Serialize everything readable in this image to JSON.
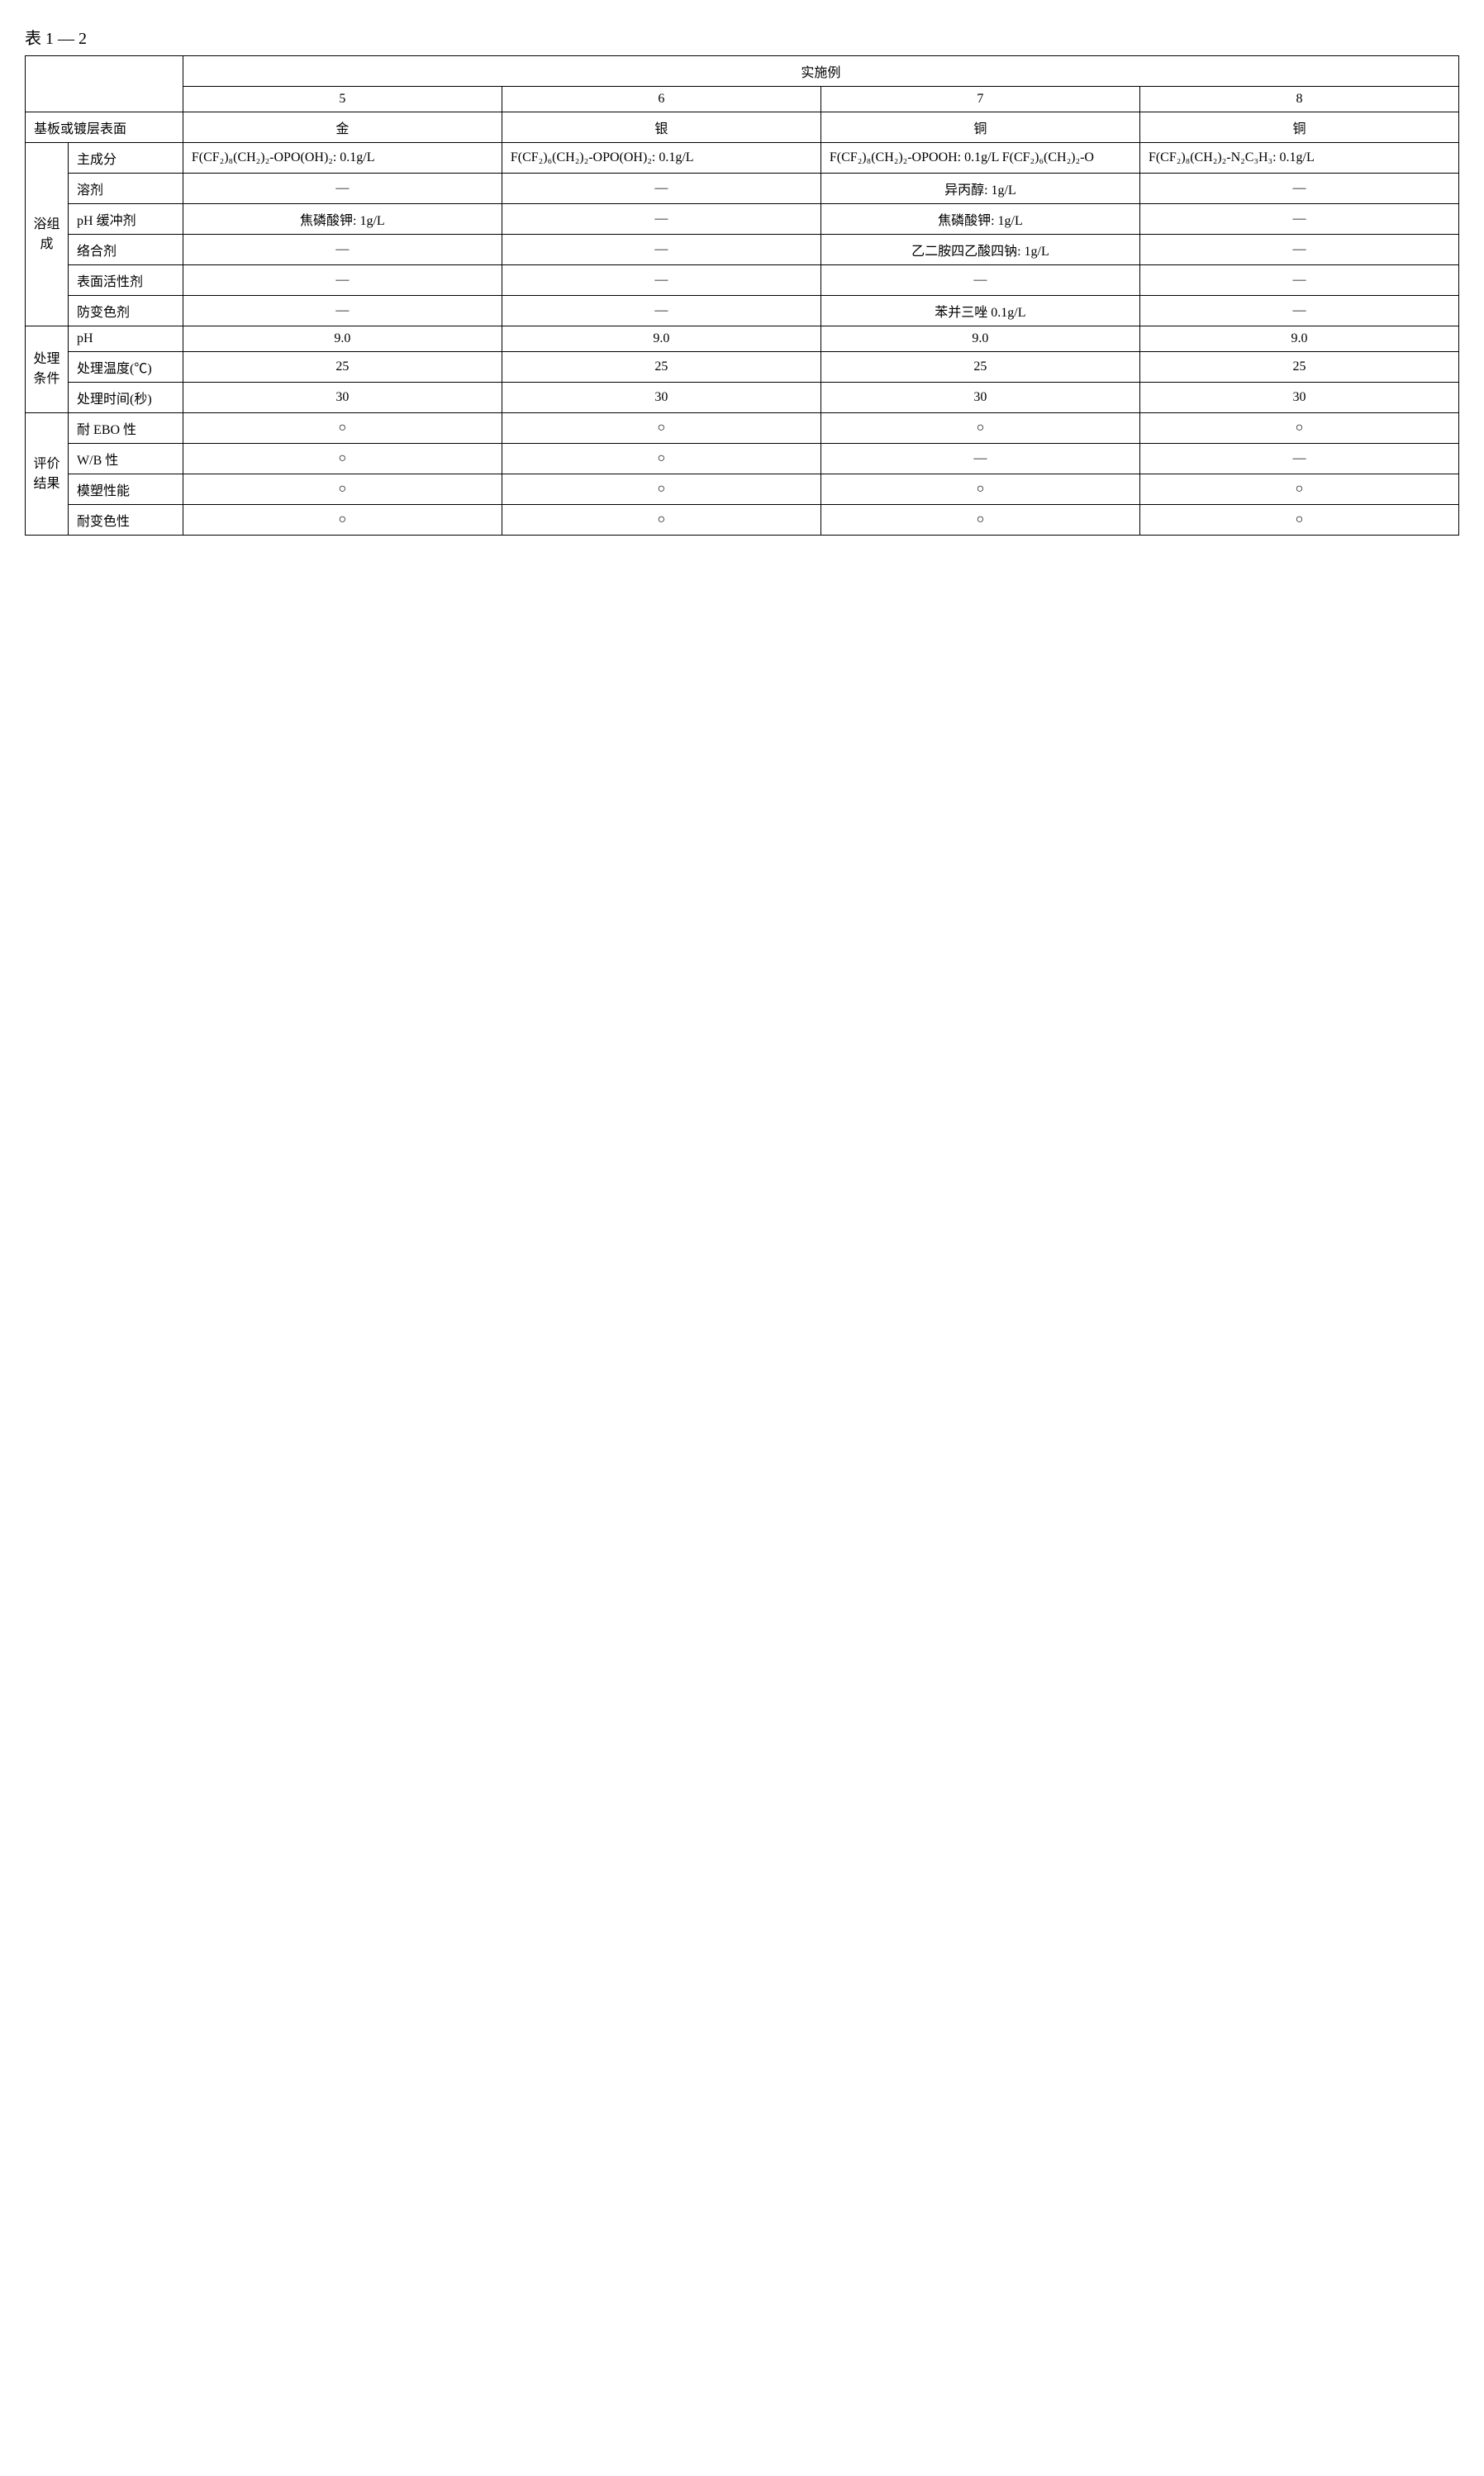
{
  "title": "表 1 — 2",
  "group_header": "实施例",
  "col_numbers": [
    "5",
    "6",
    "7",
    "8"
  ],
  "substrate_label": "基板或镀层表面",
  "substrate": [
    "金",
    "银",
    "铜",
    "铜"
  ],
  "sections": {
    "bath": {
      "label": "浴组成",
      "rows": {
        "main_component": {
          "label": "主成分",
          "v": [
            "F(CF₂)₈(CH₂)₂-OPO(OH)₂: 0.1g/L",
            "F(CF₂)₆(CH₂)₂-OPO(OH)₂: 0.1g/L",
            "F(CF₂)₈(CH₂)₂-OPOOH: 0.1g/L\nF(CF₂)₆(CH₂)₂-O",
            "F(CF₂)₈(CH₂)₂-N₂C₃H₃: 0.1g/L"
          ]
        },
        "solvent": {
          "label": "溶剂",
          "v": [
            "—",
            "—",
            "异丙醇: 1g/L",
            "—"
          ]
        },
        "ph_buffer": {
          "label": "pH 缓冲剂",
          "v": [
            "焦磷酸钾: 1g/L",
            "—",
            "焦磷酸钾: 1g/L",
            "—"
          ]
        },
        "chelator": {
          "label": "络合剂",
          "v": [
            "—",
            "—",
            "乙二胺四乙酸四钠: 1g/L",
            "—"
          ]
        },
        "surfactant": {
          "label": "表面活性剂",
          "v": [
            "—",
            "—",
            "—",
            "—"
          ]
        },
        "anti_tarnish": {
          "label": "防变色剂",
          "v": [
            "—",
            "—",
            "苯并三唑 0.1g/L",
            "—"
          ]
        }
      }
    },
    "cond": {
      "label": "处理条件",
      "rows": {
        "ph": {
          "label": "pH",
          "v": [
            "9.0",
            "9.0",
            "9.0",
            "9.0"
          ]
        },
        "temp": {
          "label": "处理温度(℃)",
          "v": [
            "25",
            "25",
            "25",
            "25"
          ]
        },
        "time": {
          "label": "处理时间(秒)",
          "v": [
            "30",
            "30",
            "30",
            "30"
          ]
        }
      }
    },
    "eval": {
      "label": "评价结果",
      "rows": {
        "ebo": {
          "label": "耐 EBO 性",
          "v": [
            "○",
            "○",
            "○",
            "○"
          ]
        },
        "wb": {
          "label": "W/B 性",
          "v": [
            "○",
            "○",
            "—",
            "—"
          ]
        },
        "mold": {
          "label": "模塑性能",
          "v": [
            "○",
            "○",
            "○",
            "○"
          ]
        },
        "tarn": {
          "label": "耐变色性",
          "v": [
            "○",
            "○",
            "○",
            "○"
          ]
        }
      }
    }
  }
}
